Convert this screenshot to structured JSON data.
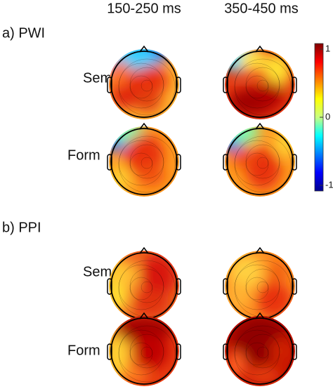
{
  "columns": [
    "150-250 ms",
    "350-450 ms"
  ],
  "panels": [
    {
      "label": "a) PWI",
      "rows": [
        "Sem",
        "Form"
      ]
    },
    {
      "label": "b) PPI",
      "rows": [
        "Sem",
        "Form"
      ]
    }
  ],
  "colorbar": {
    "ticks": [
      1,
      0,
      -1
    ]
  }
}
